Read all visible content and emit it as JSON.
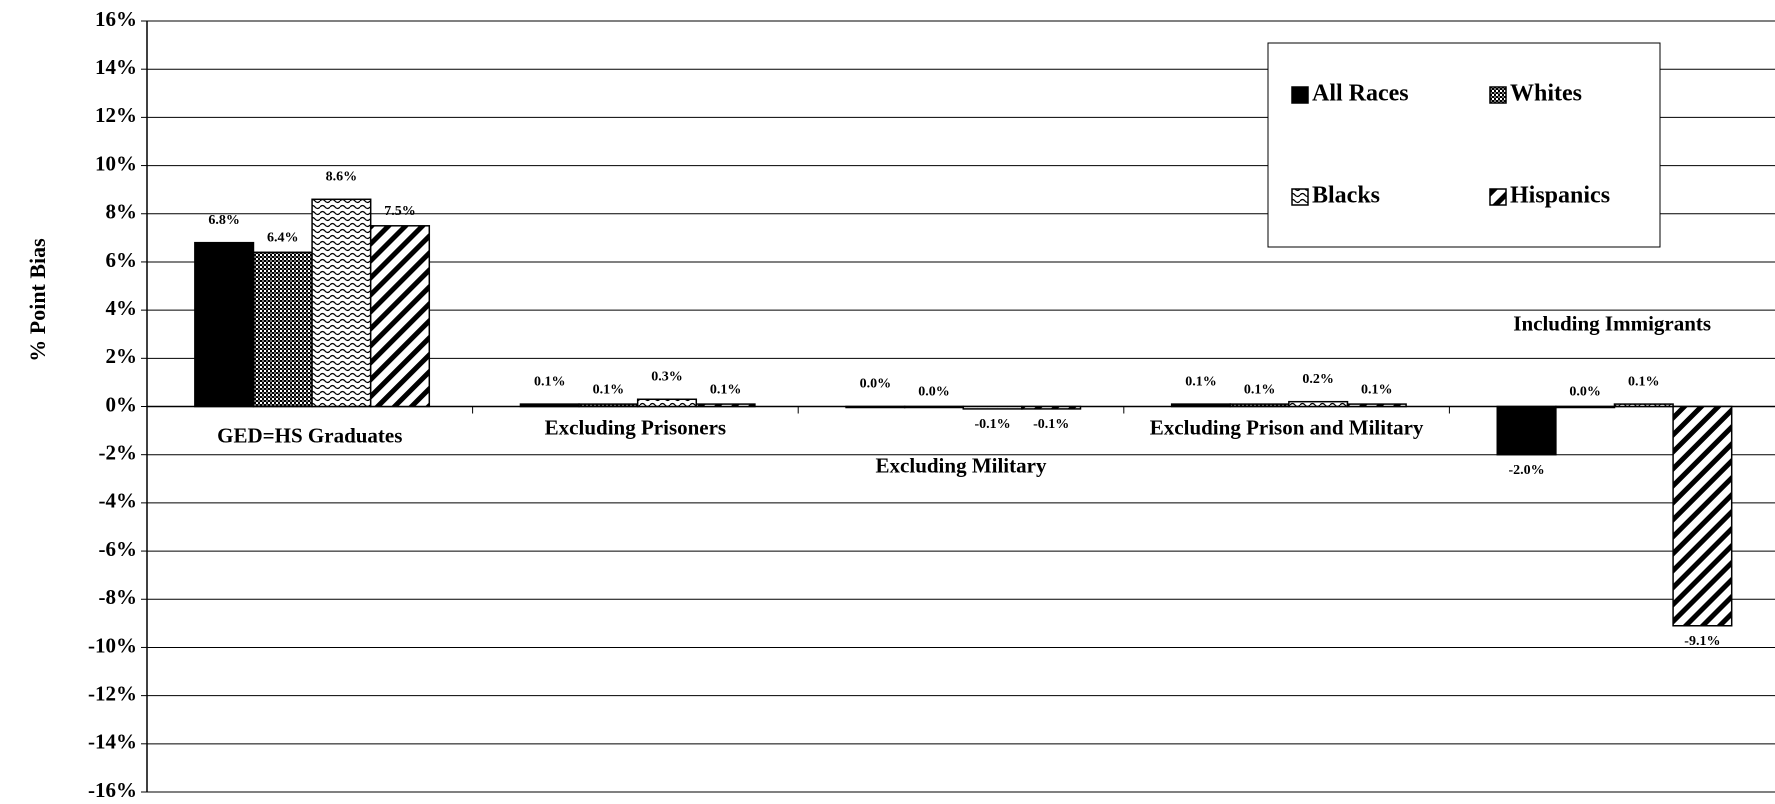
{
  "chart_data": {
    "type": "bar",
    "y_label": "% Point Bias",
    "categories": [
      "GED=HS Graduates",
      "Excluding Prisoners",
      "Excluding Military",
      "Excluding Prison and Military",
      "Including Immigrants"
    ],
    "series": [
      {
        "name": "All Races",
        "color": "#000000",
        "pattern": "solid",
        "values": [
          6.8,
          0.1,
          0.0,
          0.1,
          -2.0
        ],
        "value_labels": [
          "6.8%",
          "0.1%",
          "0.0%",
          "0.1%",
          "-2.0%"
        ]
      },
      {
        "name": "Whites",
        "color": "#000000",
        "pattern": "crosshatch",
        "values": [
          6.4,
          0.1,
          0.0,
          0.1,
          0.0
        ],
        "value_labels": [
          "6.4%",
          "0.1%",
          "0.0%",
          "0.1%",
          "0.0%"
        ]
      },
      {
        "name": "Blacks",
        "color": "#000000",
        "pattern": "wave",
        "values": [
          8.6,
          0.3,
          -0.1,
          0.2,
          0.1
        ],
        "value_labels": [
          "8.6%",
          "0.3%",
          "-0.1%",
          "0.2%",
          "0.1%"
        ]
      },
      {
        "name": "Hispanics",
        "color": "#000000",
        "pattern": "diagonal",
        "values": [
          7.5,
          0.1,
          -0.1,
          0.1,
          -9.1
        ],
        "value_labels": [
          "7.5%",
          "0.1%",
          "-0.1%",
          "0.1%",
          "-9.1%"
        ]
      }
    ],
    "ylim": [
      -16,
      16
    ],
    "yticks": [
      {
        "value": -16,
        "label": "-16%"
      },
      {
        "value": -14,
        "label": "-14%"
      },
      {
        "value": -12,
        "label": "-12%"
      },
      {
        "value": -10,
        "label": "-10%"
      },
      {
        "value": -8,
        "label": "-8%"
      },
      {
        "value": -6,
        "label": "-6%"
      },
      {
        "value": -4,
        "label": "-4%"
      },
      {
        "value": -2,
        "label": "-2%"
      },
      {
        "value": 0,
        "label": "0%"
      },
      {
        "value": 2,
        "label": "2%"
      },
      {
        "value": 4,
        "label": "4%"
      },
      {
        "value": 6,
        "label": "6%"
      },
      {
        "value": 8,
        "label": "8%"
      },
      {
        "value": 10,
        "label": "10%"
      },
      {
        "value": 12,
        "label": "12%"
      },
      {
        "value": 14,
        "label": "14%"
      },
      {
        "value": 16,
        "label": "16%"
      }
    ],
    "grid": true,
    "legend": "top-right"
  }
}
